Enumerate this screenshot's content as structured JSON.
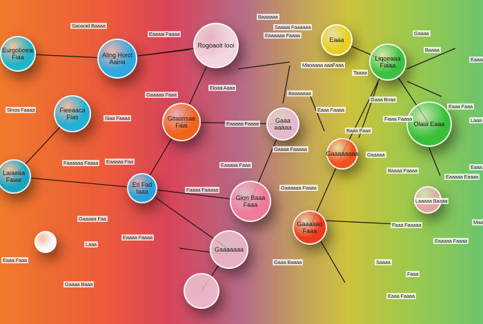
{
  "nodes": [
    {
      "label": "Eurgoboeai Fiaa",
      "color": "#1fb6c8"
    },
    {
      "label": "Aling Horct Aaina",
      "color": "#2fa8e0"
    },
    {
      "label": "Rogoaoit Iooi",
      "color": "#f4d6de"
    },
    {
      "label": "Fieeaaca Fias",
      "color": "#22b0d4"
    },
    {
      "label": "Gitaimsae Faai",
      "color": "#f0641c"
    },
    {
      "label": "Gaaa aaaaa",
      "color": "#e4b8cc"
    },
    {
      "label": "Laiaeaa Faiae",
      "color": "#1aa6c0"
    },
    {
      "label": "Etl Fad Iaaa",
      "color": "#2aa0d8"
    },
    {
      "label": "Gion Baaa Faaa",
      "color": "#f07a9a"
    },
    {
      "label": "Gaaaaaaaa",
      "color": "#f0501c"
    },
    {
      "label": "Eaaa",
      "color": "#e8d020"
    },
    {
      "label": "Liqoeaaa Fiaaa",
      "color": "#3cc040"
    },
    {
      "label": "Olaia Eaaa",
      "color": "#38c038"
    },
    {
      "label": "Gaaaaao Faaa",
      "color": "#ec3a1c"
    },
    {
      "label": "Gaaaaaaa",
      "color": "#e8b0c0"
    },
    {
      "label": "",
      "color": "#f8f8f8"
    },
    {
      "label": "",
      "color": "#eab6c8"
    },
    {
      "label": "",
      "color": "#e0a8a0"
    }
  ],
  "labels": [
    "Saoaoid Baaaa",
    "Eaaaai Faaaa",
    "Baaaaaa",
    "Saaaai Faaaaaa",
    "Eaaaaaa Faaaa",
    "Gaaaa",
    "Baaaa",
    "Eaaaa Faaaaa",
    "Taaaa",
    "Maoaaaa aaaFaaa",
    "Sinoa Faaaa",
    "Siaa Faaaa",
    "Eioaa Aaaa",
    "Gaaaaa Faaa",
    "Baaaaaaa",
    "Eaaa Faaaa",
    "Gaaa Bnaa",
    "Fiaaa Faaaa",
    "Eaaa Faaa",
    "Laaa",
    "Faaaaaa Faaaa",
    "Eaaaaa Faa",
    "Eaaaaa Faaaa",
    "Gaaaa Faaaaa",
    "Eaaaaa Faaa",
    "Baaa Faaa",
    "Gaaaaa",
    "Baaaa Faaaa",
    "Eaaaaa Eaaaa",
    "Eaaa",
    "Faaaa Faaaaa",
    "Gaaaaaa Faaaa",
    "Laaaaa Baaaa",
    "Maaa Faaaa",
    "Gaaaaa Faa",
    "Eaaaa Faaaa",
    "Faaa Faaaaa",
    "Eaaaaa Faaaa",
    "Laaa",
    "Eaaa Faaa",
    "Gaaa Baaaa",
    "Saaaa",
    "Faaa",
    "Gaaaa Baaa",
    "Eaaa Faaaa"
  ]
}
